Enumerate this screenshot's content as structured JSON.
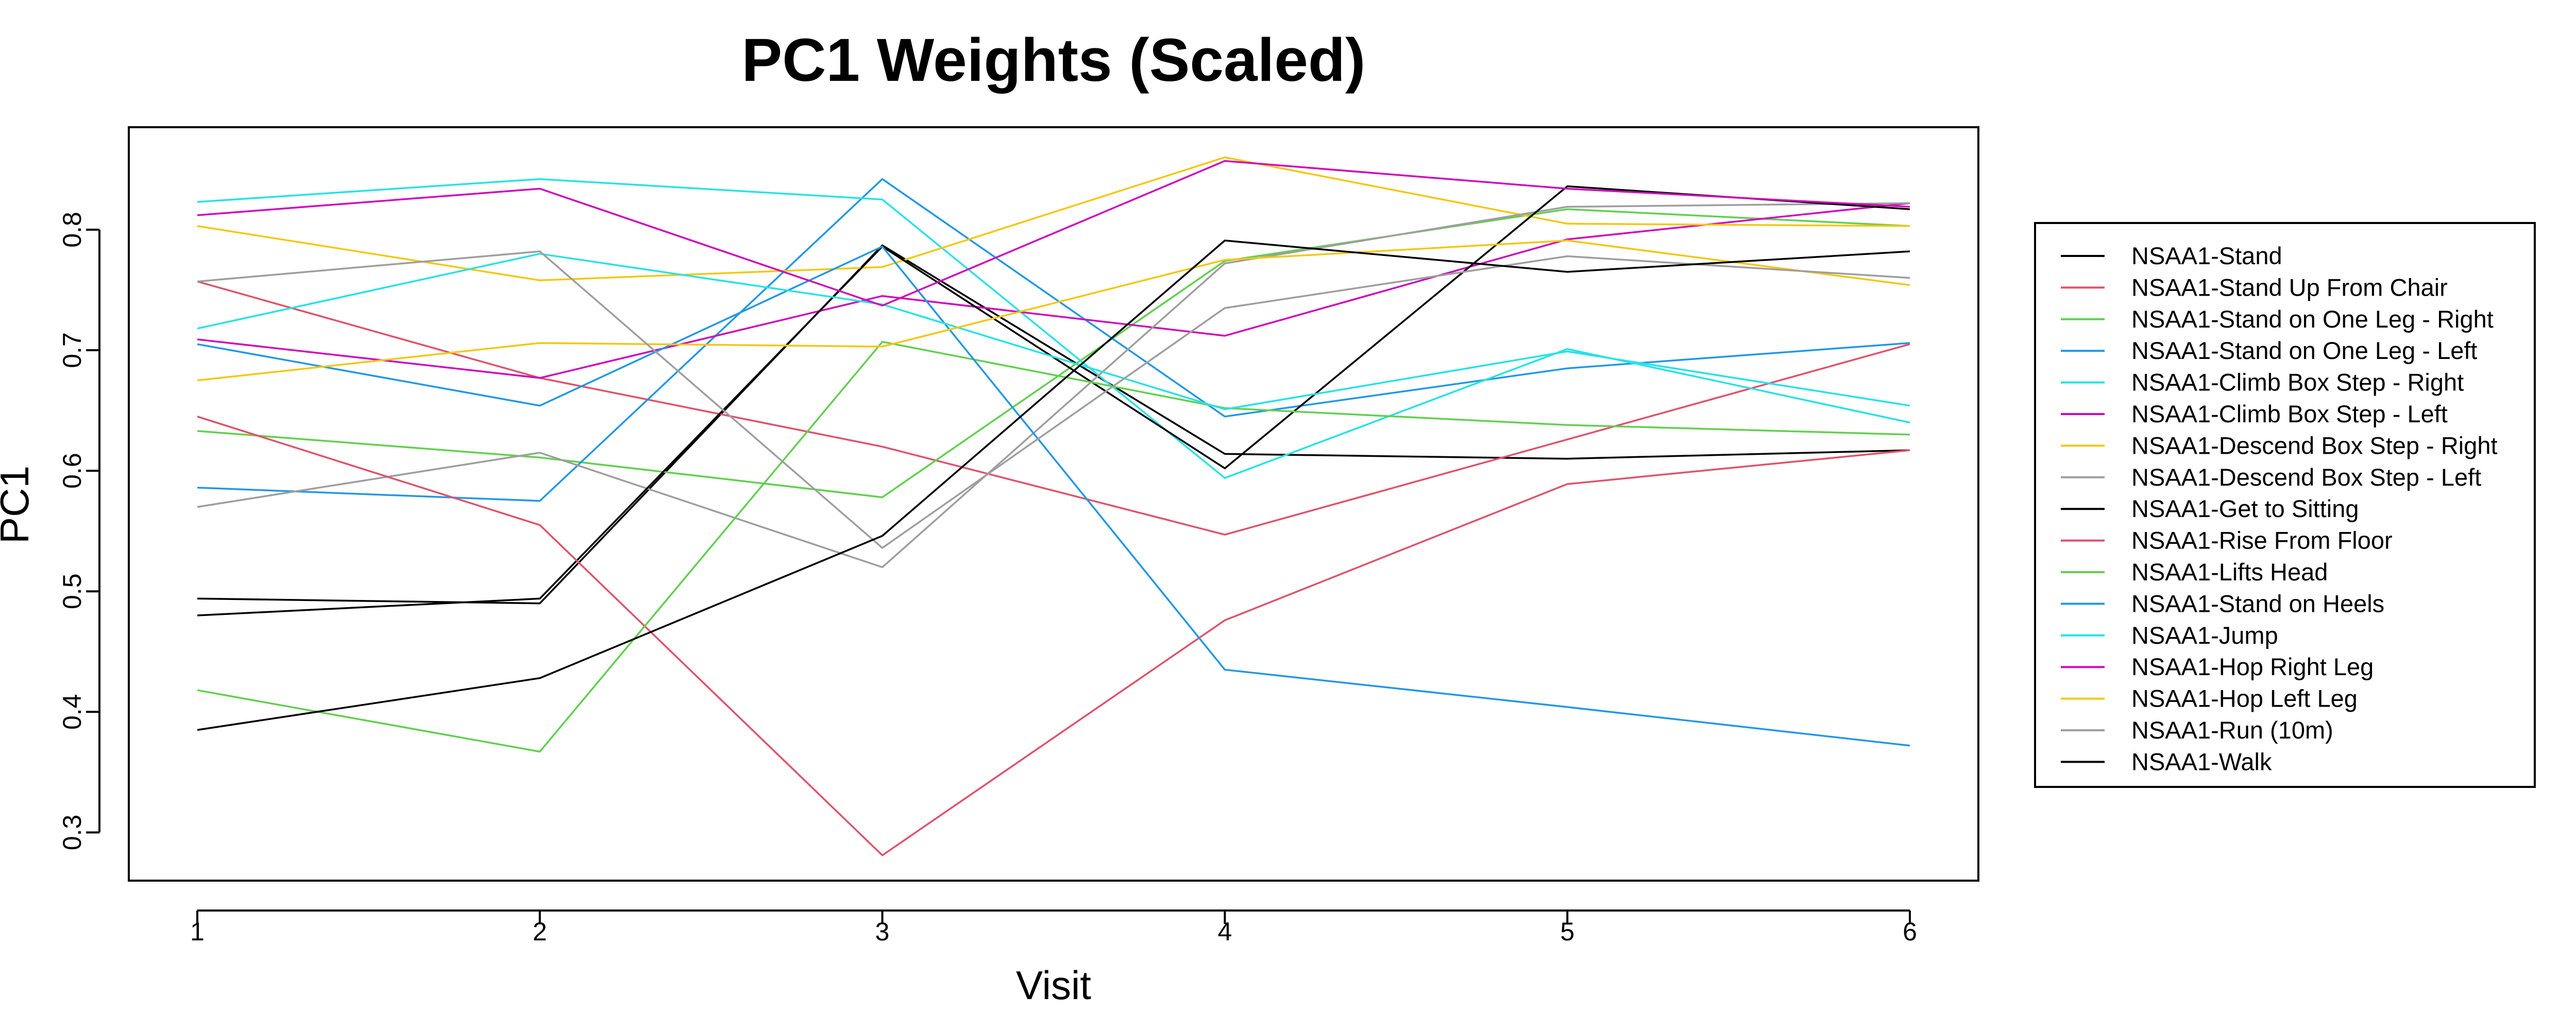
{
  "chart_data": {
    "type": "line",
    "title": "PC1 Weights (Scaled)",
    "xlabel": "Visit",
    "ylabel": "PC1",
    "x": [
      1,
      2,
      3,
      4,
      5,
      6
    ],
    "xlim": [
      0.8,
      6.2
    ],
    "ylim": [
      0.26,
      0.885
    ],
    "yticks": [
      0.3,
      0.4,
      0.5,
      0.6,
      0.7,
      0.8
    ],
    "grid": false,
    "legend_position": "right",
    "series": [
      {
        "name": "NSAA1-Stand",
        "color": "#000000",
        "values": [
          0.494,
          0.49,
          0.787,
          0.614,
          0.61,
          0.617
        ]
      },
      {
        "name": "NSAA1-Stand Up From Chair",
        "color": "#DF536B",
        "values": [
          0.757,
          0.677,
          0.62,
          0.547,
          0.626,
          0.705
        ]
      },
      {
        "name": "NSAA1-Stand on One Leg - Right",
        "color": "#61D04F",
        "values": [
          0.633,
          0.611,
          0.578,
          0.774,
          0.817,
          0.803
        ]
      },
      {
        "name": "NSAA1-Stand on One Leg - Left",
        "color": "#2297E6",
        "values": [
          0.586,
          0.575,
          0.842,
          0.645,
          0.685,
          0.706
        ]
      },
      {
        "name": "NSAA1-Climb Box Step - Right",
        "color": "#28E2E5",
        "values": [
          0.823,
          0.842,
          0.825,
          0.594,
          0.701,
          0.64
        ]
      },
      {
        "name": "NSAA1-Climb Box Step - Left",
        "color": "#CD0BBC",
        "values": [
          0.709,
          0.677,
          0.745,
          0.712,
          0.792,
          0.822
        ]
      },
      {
        "name": "NSAA1-Descend Box Step - Right",
        "color": "#F5C710",
        "values": [
          0.803,
          0.758,
          0.769,
          0.86,
          0.805,
          0.803
        ]
      },
      {
        "name": "NSAA1-Descend Box Step - Left",
        "color": "#9E9E9E",
        "values": [
          0.57,
          0.615,
          0.52,
          0.772,
          0.819,
          0.822
        ]
      },
      {
        "name": "NSAA1-Get to Sitting",
        "color": "#000000",
        "values": [
          0.48,
          0.494,
          0.786,
          0.602,
          0.836,
          0.817
        ]
      },
      {
        "name": "NSAA1-Rise From Floor",
        "color": "#DF536B",
        "values": [
          0.645,
          0.555,
          0.281,
          0.476,
          0.589,
          0.617
        ]
      },
      {
        "name": "NSAA1-Lifts Head",
        "color": "#61D04F",
        "values": [
          0.418,
          0.367,
          0.707,
          0.652,
          0.638,
          0.63
        ]
      },
      {
        "name": "NSAA1-Stand on Heels",
        "color": "#2297E6",
        "values": [
          0.705,
          0.654,
          0.786,
          0.435,
          0.404,
          0.372
        ]
      },
      {
        "name": "NSAA1-Jump",
        "color": "#28E2E5",
        "values": [
          0.718,
          0.78,
          0.738,
          0.651,
          0.699,
          0.654
        ]
      },
      {
        "name": "NSAA1-Hop Right Leg",
        "color": "#CD0BBC",
        "values": [
          0.812,
          0.834,
          0.737,
          0.857,
          0.834,
          0.819
        ]
      },
      {
        "name": "NSAA1-Hop Left Leg",
        "color": "#F5C710",
        "values": [
          0.675,
          0.706,
          0.703,
          0.775,
          0.791,
          0.754
        ]
      },
      {
        "name": "NSAA1-Run (10m)",
        "color": "#9E9E9E",
        "values": [
          0.757,
          0.782,
          0.536,
          0.735,
          0.778,
          0.76
        ]
      },
      {
        "name": "NSAA1-Walk",
        "color": "#000000",
        "values": [
          0.385,
          0.428,
          0.546,
          0.791,
          0.765,
          0.782
        ]
      }
    ]
  }
}
